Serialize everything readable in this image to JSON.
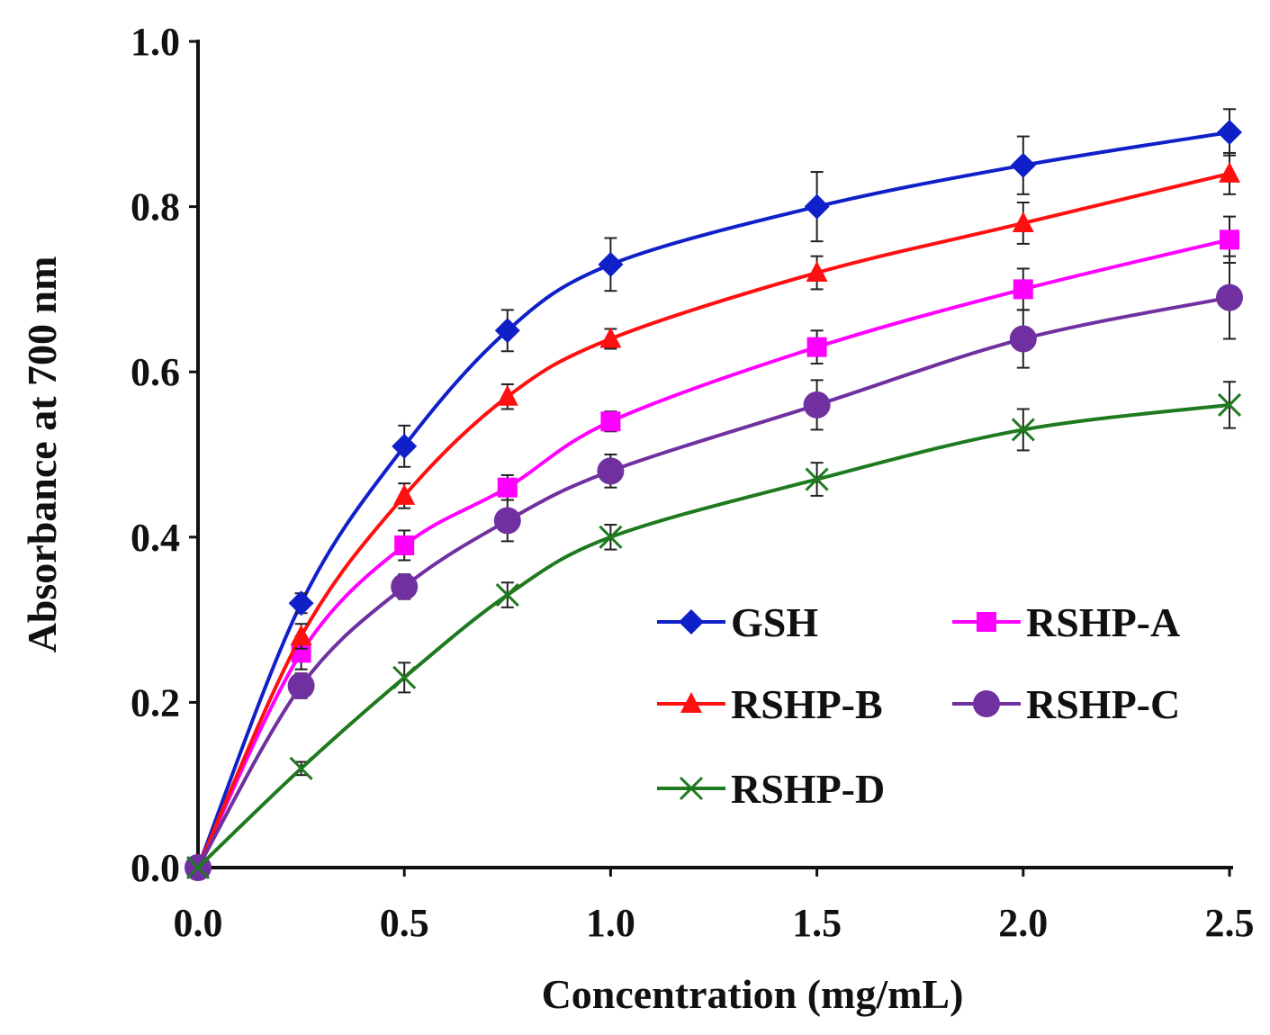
{
  "chart_data": {
    "type": "line",
    "title": "",
    "xlabel": "Concentration (mg/mL)",
    "ylabel": "Absorbance at 700 nm",
    "xlim": [
      0,
      2.5
    ],
    "ylim": [
      0,
      1.0
    ],
    "x": [
      0,
      0.25,
      0.5,
      0.75,
      1.0,
      1.5,
      2.0,
      2.5
    ],
    "x_ticks": [
      "0.0",
      "0.5",
      "1.0",
      "1.5",
      "2.0",
      "2.5"
    ],
    "x_tick_values": [
      0,
      0.5,
      1.0,
      1.5,
      2.0,
      2.5
    ],
    "y_ticks": [
      "0.0",
      "0.2",
      "0.4",
      "0.6",
      "0.8",
      "1.0"
    ],
    "y_tick_values": [
      0,
      0.2,
      0.4,
      0.6,
      0.8,
      1.0
    ],
    "grid": false,
    "legend_position": "bottom-right",
    "series": [
      {
        "name": "GSH",
        "color": "#1020c8",
        "marker": "diamond",
        "values": [
          0,
          0.32,
          0.51,
          0.65,
          0.73,
          0.8,
          0.85,
          0.89
        ],
        "errors": [
          0,
          0.012,
          0.025,
          0.025,
          0.032,
          0.042,
          0.035,
          0.028
        ]
      },
      {
        "name": "RSHP-A",
        "color": "#ff00ff",
        "marker": "square",
        "values": [
          0,
          0.26,
          0.39,
          0.46,
          0.54,
          0.63,
          0.7,
          0.76
        ],
        "errors": [
          0,
          0.02,
          0.018,
          0.015,
          0.012,
          0.02,
          0.025,
          0.028
        ]
      },
      {
        "name": "RSHP-B",
        "color": "#ff1010",
        "marker": "triangle",
        "values": [
          0,
          0.28,
          0.45,
          0.57,
          0.64,
          0.72,
          0.78,
          0.84
        ],
        "errors": [
          0,
          0.015,
          0.015,
          0.015,
          0.012,
          0.02,
          0.025,
          0.025
        ]
      },
      {
        "name": "RSHP-C",
        "color": "#7030a0",
        "marker": "circle",
        "values": [
          0,
          0.22,
          0.34,
          0.42,
          0.48,
          0.56,
          0.64,
          0.69
        ],
        "errors": [
          0,
          0.015,
          0.015,
          0.025,
          0.02,
          0.03,
          0.035,
          0.05
        ]
      },
      {
        "name": "RSHP-D",
        "color": "#1e7a1e",
        "marker": "x",
        "values": [
          0,
          0.12,
          0.23,
          0.33,
          0.4,
          0.47,
          0.53,
          0.56
        ],
        "errors": [
          0,
          0.008,
          0.018,
          0.015,
          0.015,
          0.02,
          0.025,
          0.028
        ]
      }
    ],
    "legend_order": [
      "GSH",
      "RSHP-A",
      "RSHP-B",
      "RSHP-C",
      "RSHP-D"
    ]
  }
}
